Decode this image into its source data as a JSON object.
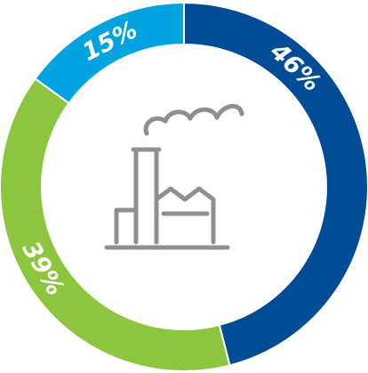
{
  "chart_data": {
    "type": "pie",
    "variant": "donut",
    "title": "",
    "slices": [
      {
        "label": "46%",
        "value": 46,
        "color": "#004c97"
      },
      {
        "label": "39%",
        "value": 39,
        "color": "#8cc63f"
      },
      {
        "label": "15%",
        "value": 15,
        "color": "#00a3e0"
      }
    ],
    "start_angle_deg": 0,
    "direction": "clockwise",
    "legend": "none",
    "center_icon": "factory-icon"
  }
}
